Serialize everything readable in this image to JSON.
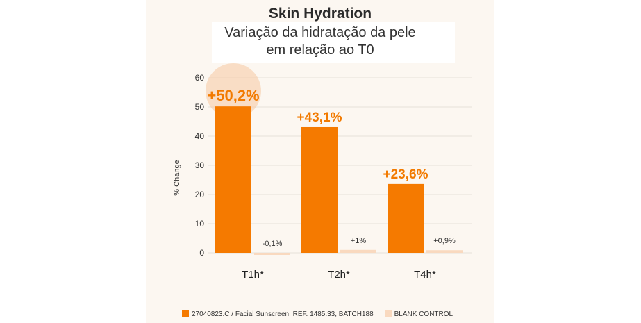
{
  "chart_data": {
    "type": "bar",
    "title": "Skin Hydration",
    "subtitle_line1": "Variação da hidratação da pele",
    "subtitle_line2": "em relação ao T0",
    "ylabel": "% Change",
    "ylim": [
      0,
      60
    ],
    "yticks": [
      "0",
      "10",
      "20",
      "30",
      "40",
      "50",
      "60"
    ],
    "categories": [
      "T1h*",
      "T2h*",
      "T4h*"
    ],
    "series": [
      {
        "name": "27040823.C / Facial Sunscreen, REF. 1485.33, BATCH188",
        "values": [
          50.2,
          43.1,
          23.6
        ],
        "labels": [
          "+50,2%",
          "+43,1%",
          "+23,6%"
        ],
        "color": "#f57a00"
      },
      {
        "name": "BLANK CONTROL",
        "values": [
          -0.1,
          1,
          0.9
        ],
        "labels": [
          "-0,1%",
          "+1%",
          "+0,9%"
        ],
        "color": "#f9d9bf"
      }
    ],
    "grid": true,
    "legend": "bottom"
  }
}
